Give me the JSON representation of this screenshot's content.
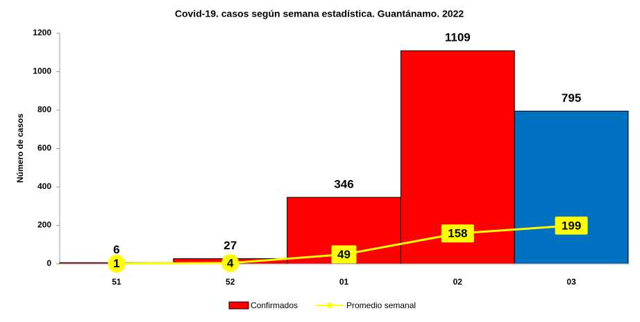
{
  "chart_data": {
    "type": "bar-line",
    "title": "Covid-19. casos según semana estadística. Guantánamo. 2022",
    "ylabel": "Número de casos",
    "categories": [
      "51",
      "52",
      "01",
      "02",
      "03"
    ],
    "series": [
      {
        "name": "Confirmados",
        "type": "bar",
        "color": "#ff0000",
        "colors": [
          "#ff0000",
          "#ff0000",
          "#ff0000",
          "#ff0000",
          "#0070c0"
        ],
        "values": [
          6,
          27,
          346,
          1109,
          795
        ]
      },
      {
        "name": "Promedio semanal",
        "type": "line",
        "color": "#ffff00",
        "values": [
          1,
          4,
          49,
          158,
          199
        ]
      }
    ],
    "ylim": [
      0,
      1200
    ],
    "yticks": [
      0,
      200,
      400,
      600,
      800,
      1000,
      1200
    ]
  }
}
